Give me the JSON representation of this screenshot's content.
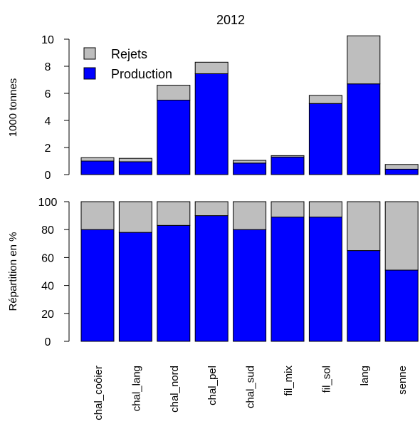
{
  "chart_data": {
    "type": "bar",
    "stacked": true,
    "title": "2012",
    "categories": [
      "chal_coôier",
      "chal_lang",
      "chal_nord",
      "chal_pel",
      "chal_sud",
      "fil_mix",
      "fil_sol",
      "lang",
      "senne"
    ],
    "colors": {
      "Production": "#0000ff",
      "Rejets": "#bebebe"
    },
    "panels": [
      {
        "ylabel": "1000 tonnes",
        "ylim": [
          0,
          10
        ],
        "yticks": [
          0,
          2,
          4,
          6,
          8,
          10
        ],
        "legend": {
          "position": "top-left",
          "entries": [
            "Rejets",
            "Production"
          ]
        },
        "series": [
          {
            "name": "Production",
            "values": [
              1.0,
              0.95,
              5.5,
              7.45,
              0.85,
              1.3,
              5.25,
              6.7,
              0.4
            ]
          },
          {
            "name": "Rejets",
            "values": [
              0.25,
              0.25,
              1.1,
              0.85,
              0.2,
              0.1,
              0.6,
              3.55,
              0.35
            ]
          }
        ]
      },
      {
        "ylabel": "Répartition en %",
        "ylim": [
          0,
          100
        ],
        "yticks": [
          0,
          20,
          40,
          60,
          80,
          100
        ],
        "series": [
          {
            "name": "Production",
            "values": [
              80,
              78,
              83,
              90,
              80,
              89,
              89,
              65,
              51
            ]
          },
          {
            "name": "Rejets",
            "values": [
              20,
              22,
              17,
              10,
              20,
              11,
              11,
              35,
              49
            ]
          }
        ]
      }
    ]
  }
}
